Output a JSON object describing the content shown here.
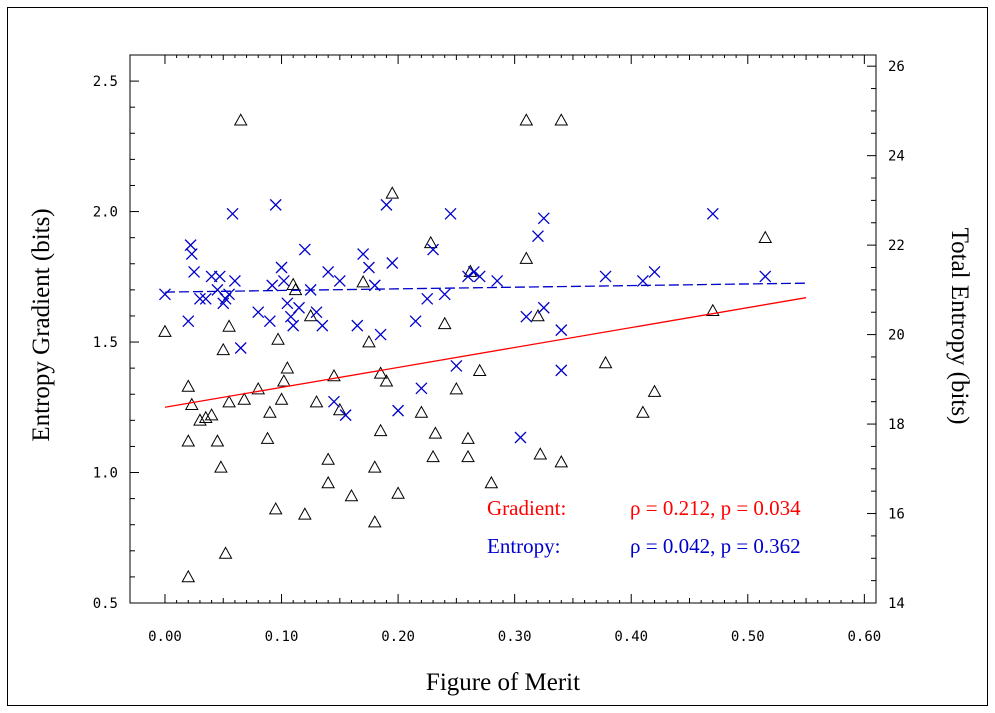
{
  "chart_data": {
    "type": "scatter",
    "title": "",
    "xlabel": "Figure of Merit",
    "ylabel": "Entropy Gradient (bits)",
    "y2label": "Total Entropy (bits)",
    "xlim": [
      -0.03,
      0.61
    ],
    "ylim": [
      0.5,
      2.6
    ],
    "y2lim": [
      14,
      26.25
    ],
    "xticks": [
      "0.00",
      "0.10",
      "0.20",
      "0.30",
      "0.40",
      "0.50",
      "0.60"
    ],
    "yticks": [
      "0.5",
      "1.0",
      "1.5",
      "2.0",
      "2.5"
    ],
    "y2ticks": [
      "14",
      "16",
      "18",
      "20",
      "22",
      "24",
      "26"
    ],
    "grid": false,
    "series": [
      {
        "name": "Gradient",
        "axis": "left",
        "marker": "triangle",
        "color": "#000000",
        "points": [
          [
            0.0,
            1.54
          ],
          [
            0.02,
            1.33
          ],
          [
            0.02,
            1.12
          ],
          [
            0.02,
            0.6
          ],
          [
            0.023,
            1.26
          ],
          [
            0.03,
            1.2
          ],
          [
            0.035,
            1.21
          ],
          [
            0.04,
            1.22
          ],
          [
            0.045,
            1.12
          ],
          [
            0.048,
            1.02
          ],
          [
            0.05,
            1.47
          ],
          [
            0.052,
            0.69
          ],
          [
            0.055,
            1.56
          ],
          [
            0.055,
            1.27
          ],
          [
            0.065,
            2.35
          ],
          [
            0.068,
            1.28
          ],
          [
            0.08,
            1.32
          ],
          [
            0.088,
            1.13
          ],
          [
            0.09,
            1.23
          ],
          [
            0.095,
            0.86
          ],
          [
            0.097,
            1.51
          ],
          [
            0.1,
            1.28
          ],
          [
            0.102,
            1.35
          ],
          [
            0.105,
            1.4
          ],
          [
            0.11,
            1.72
          ],
          [
            0.112,
            1.7
          ],
          [
            0.12,
            0.84
          ],
          [
            0.125,
            1.6
          ],
          [
            0.13,
            1.27
          ],
          [
            0.14,
            1.05
          ],
          [
            0.14,
            0.96
          ],
          [
            0.145,
            1.37
          ],
          [
            0.15,
            1.24
          ],
          [
            0.16,
            0.91
          ],
          [
            0.17,
            1.73
          ],
          [
            0.175,
            1.5
          ],
          [
            0.18,
            1.02
          ],
          [
            0.18,
            0.81
          ],
          [
            0.185,
            1.38
          ],
          [
            0.185,
            1.16
          ],
          [
            0.19,
            1.35
          ],
          [
            0.195,
            2.07
          ],
          [
            0.2,
            0.92
          ],
          [
            0.22,
            1.23
          ],
          [
            0.228,
            1.88
          ],
          [
            0.23,
            1.06
          ],
          [
            0.232,
            1.15
          ],
          [
            0.24,
            1.57
          ],
          [
            0.25,
            1.32
          ],
          [
            0.262,
            1.77
          ],
          [
            0.26,
            1.13
          ],
          [
            0.26,
            1.06
          ],
          [
            0.27,
            1.39
          ],
          [
            0.28,
            0.96
          ],
          [
            0.31,
            2.35
          ],
          [
            0.31,
            1.82
          ],
          [
            0.32,
            1.6
          ],
          [
            0.322,
            1.07
          ],
          [
            0.34,
            2.35
          ],
          [
            0.34,
            1.04
          ],
          [
            0.378,
            1.42
          ],
          [
            0.41,
            1.23
          ],
          [
            0.42,
            1.31
          ],
          [
            0.47,
            1.62
          ],
          [
            0.515,
            1.9
          ]
        ]
      },
      {
        "name": "Entropy",
        "axis": "right",
        "marker": "cross",
        "color": "#0000cc",
        "points": [
          [
            0.0,
            20.9
          ],
          [
            0.02,
            20.3
          ],
          [
            0.022,
            22.0
          ],
          [
            0.023,
            21.8
          ],
          [
            0.025,
            21.4
          ],
          [
            0.03,
            20.8
          ],
          [
            0.035,
            20.8
          ],
          [
            0.04,
            21.3
          ],
          [
            0.045,
            21.0
          ],
          [
            0.047,
            21.3
          ],
          [
            0.05,
            20.7
          ],
          [
            0.052,
            20.8
          ],
          [
            0.055,
            20.9
          ],
          [
            0.058,
            22.7
          ],
          [
            0.06,
            21.2
          ],
          [
            0.065,
            19.7
          ],
          [
            0.08,
            20.5
          ],
          [
            0.09,
            20.3
          ],
          [
            0.092,
            21.1
          ],
          [
            0.095,
            22.9
          ],
          [
            0.1,
            21.5
          ],
          [
            0.102,
            21.2
          ],
          [
            0.105,
            20.7
          ],
          [
            0.108,
            20.4
          ],
          [
            0.11,
            20.2
          ],
          [
            0.115,
            20.6
          ],
          [
            0.12,
            21.9
          ],
          [
            0.125,
            21.0
          ],
          [
            0.13,
            20.5
          ],
          [
            0.135,
            20.2
          ],
          [
            0.14,
            21.4
          ],
          [
            0.145,
            18.5
          ],
          [
            0.15,
            21.2
          ],
          [
            0.155,
            18.2
          ],
          [
            0.165,
            20.2
          ],
          [
            0.17,
            21.8
          ],
          [
            0.175,
            21.5
          ],
          [
            0.18,
            21.1
          ],
          [
            0.185,
            20.0
          ],
          [
            0.19,
            22.9
          ],
          [
            0.195,
            21.6
          ],
          [
            0.2,
            18.3
          ],
          [
            0.215,
            20.3
          ],
          [
            0.22,
            18.8
          ],
          [
            0.225,
            20.8
          ],
          [
            0.23,
            21.9
          ],
          [
            0.24,
            20.9
          ],
          [
            0.245,
            22.7
          ],
          [
            0.25,
            19.3
          ],
          [
            0.26,
            21.3
          ],
          [
            0.265,
            21.4
          ],
          [
            0.27,
            21.3
          ],
          [
            0.285,
            21.2
          ],
          [
            0.305,
            17.7
          ],
          [
            0.31,
            20.4
          ],
          [
            0.32,
            22.2
          ],
          [
            0.325,
            22.6
          ],
          [
            0.325,
            20.6
          ],
          [
            0.34,
            19.2
          ],
          [
            0.34,
            20.1
          ],
          [
            0.378,
            21.3
          ],
          [
            0.41,
            21.2
          ],
          [
            0.42,
            21.4
          ],
          [
            0.47,
            22.7
          ],
          [
            0.515,
            21.3
          ]
        ]
      }
    ],
    "fits": [
      {
        "name": "Gradient fit",
        "axis": "left",
        "color": "#ff0000",
        "style": "solid",
        "x": [
          0.0,
          0.55
        ],
        "y": [
          1.25,
          1.67
        ]
      },
      {
        "name": "Entropy fit",
        "axis": "right",
        "color": "#0000cc",
        "style": "dashed",
        "x": [
          0.0,
          0.55
        ],
        "y": [
          20.95,
          21.15
        ]
      }
    ],
    "annotations": [
      {
        "label": "Gradient:",
        "stats": "ρ = 0.212, p = 0.034",
        "color": "#ff0000"
      },
      {
        "label": "Entropy:",
        "stats": "ρ = 0.042, p = 0.362",
        "color": "#0000cc"
      }
    ],
    "legend_position": "bottom-right"
  }
}
